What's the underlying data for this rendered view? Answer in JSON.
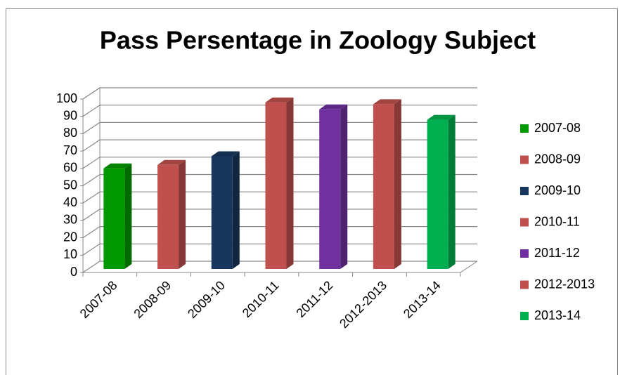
{
  "chart_data": {
    "type": "bar3d",
    "title": "Pass Persentage in Zoology Subject",
    "categories": [
      "2007-08",
      "2008-09",
      "2009-10",
      "2010-11",
      "2011-12",
      "2012-2013",
      "2013-14"
    ],
    "values": [
      58,
      60,
      65,
      96,
      92,
      95,
      86
    ],
    "colors": [
      "#009900",
      "#c0504d",
      "#17375e",
      "#c0504d",
      "#7030a0",
      "#c0504d",
      "#00b050"
    ],
    "ylim": [
      0,
      100
    ],
    "yticks": [
      0,
      10,
      20,
      30,
      40,
      50,
      60,
      70,
      80,
      90,
      100
    ],
    "grid": true,
    "legend": "right"
  }
}
